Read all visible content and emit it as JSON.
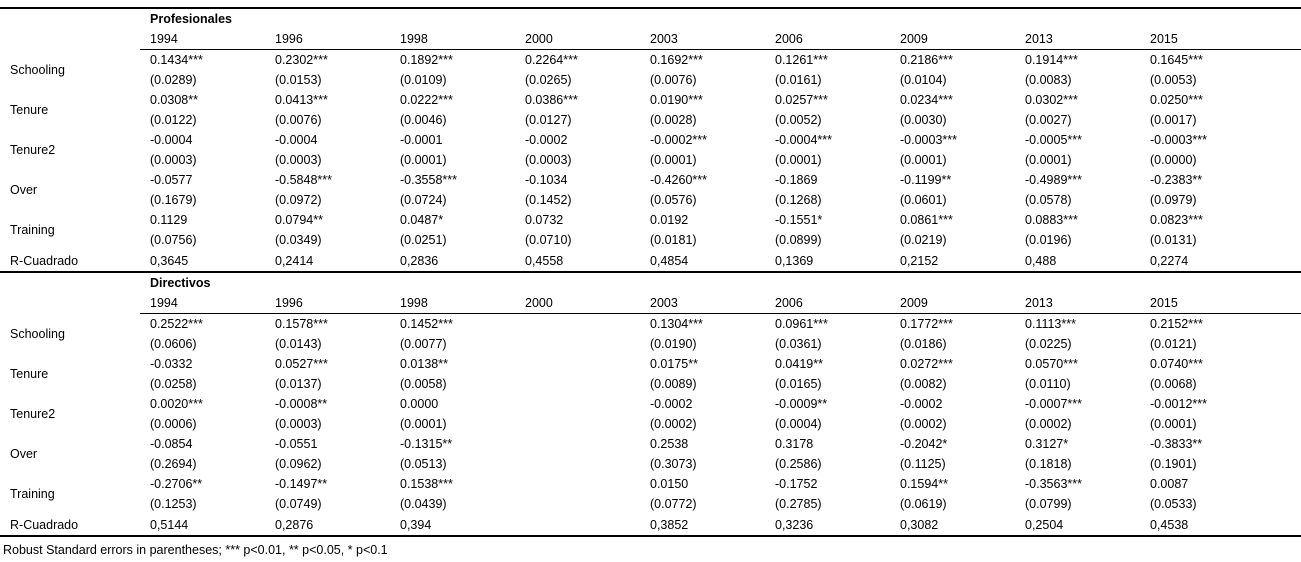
{
  "table": {
    "years": [
      "1994",
      "1996",
      "1998",
      "2000",
      "2003",
      "2006",
      "2009",
      "2013",
      "2015"
    ],
    "panels": [
      {
        "title": "Profesionales",
        "rows": [
          {
            "label": "Schooling",
            "coef": [
              "0.1434***",
              "0.2302***",
              "0.1892***",
              "0.2264***",
              "0.1692***",
              "0.1261***",
              "0.2186***",
              "0.1914***",
              "0.1645***"
            ],
            "se": [
              "(0.0289)",
              "(0.0153)",
              "(0.0109)",
              "(0.0265)",
              "(0.0076)",
              "(0.0161)",
              "(0.0104)",
              "(0.0083)",
              "(0.0053)"
            ]
          },
          {
            "label": "Tenure",
            "coef": [
              "0.0308**",
              "0.0413***",
              "0.0222***",
              "0.0386***",
              "0.0190***",
              "0.0257***",
              "0.0234***",
              "0.0302***",
              "0.0250***"
            ],
            "se": [
              "(0.0122)",
              "(0.0076)",
              "(0.0046)",
              "(0.0127)",
              "(0.0028)",
              "(0.0052)",
              "(0.0030)",
              "(0.0027)",
              "(0.0017)"
            ]
          },
          {
            "label": "Tenure2",
            "coef": [
              "-0.0004",
              "-0.0004",
              "-0.0001",
              "-0.0002",
              "-0.0002***",
              "-0.0004***",
              "-0.0003***",
              "-0.0005***",
              "-0.0003***"
            ],
            "se": [
              "(0.0003)",
              "(0.0003)",
              "(0.0001)",
              "(0.0003)",
              "(0.0001)",
              "(0.0001)",
              "(0.0001)",
              "(0.0001)",
              "(0.0000)"
            ]
          },
          {
            "label": "Over",
            "coef": [
              "-0.0577",
              "-0.5848***",
              "-0.3558***",
              "-0.1034",
              "-0.4260***",
              "-0.1869",
              "-0.1199**",
              "-0.4989***",
              "-0.2383**"
            ],
            "se": [
              "(0.1679)",
              "(0.0972)",
              "(0.0724)",
              "(0.1452)",
              "(0.0576)",
              "(0.1268)",
              "(0.0601)",
              "(0.0578)",
              "(0.0979)"
            ]
          },
          {
            "label": "Training",
            "coef": [
              "0.1129",
              "0.0794**",
              "0.0487*",
              "0.0732",
              "0.0192",
              "-0.1551*",
              "0.0861***",
              "0.0883***",
              "0.0823***"
            ],
            "se": [
              "(0.0756)",
              "(0.0349)",
              "(0.0251)",
              "(0.0710)",
              "(0.0181)",
              "(0.0899)",
              "(0.0219)",
              "(0.0196)",
              "(0.0131)"
            ]
          }
        ],
        "r2": {
          "label": "R-Cuadrado",
          "values": [
            "0,3645",
            "0,2414",
            "0,2836",
            "0,4558",
            "0,4854",
            "0,1369",
            "0,2152",
            "0,488",
            "0,2274"
          ]
        }
      },
      {
        "title": "Directivos",
        "rows": [
          {
            "label": "Schooling",
            "coef": [
              "0.2522***",
              "0.1578***",
              "0.1452***",
              "",
              "0.1304***",
              "0.0961***",
              "0.1772***",
              "0.1113***",
              "0.2152***"
            ],
            "se": [
              "(0.0606)",
              "(0.0143)",
              "(0.0077)",
              "",
              "(0.0190)",
              "(0.0361)",
              "(0.0186)",
              "(0.0225)",
              "(0.0121)"
            ]
          },
          {
            "label": "Tenure",
            "coef": [
              "-0.0332",
              "0.0527***",
              "0.0138**",
              "",
              "0.0175**",
              "0.0419**",
              "0.0272***",
              "0.0570***",
              "0.0740***"
            ],
            "se": [
              "(0.0258)",
              "(0.0137)",
              "(0.0058)",
              "",
              "(0.0089)",
              "(0.0165)",
              "(0.0082)",
              "(0.0110)",
              "(0.0068)"
            ]
          },
          {
            "label": "Tenure2",
            "coef": [
              "0.0020***",
              "-0.0008**",
              "0.0000",
              "",
              "-0.0002",
              "-0.0009**",
              "-0.0002",
              "-0.0007***",
              "-0.0012***"
            ],
            "se": [
              "(0.0006)",
              "(0.0003)",
              "(0.0001)",
              "",
              "(0.0002)",
              "(0.0004)",
              "(0.0002)",
              "(0.0002)",
              "(0.0001)"
            ]
          },
          {
            "label": "Over",
            "coef": [
              "-0.0854",
              "-0.0551",
              "-0.1315**",
              "",
              "0.2538",
              "0.3178",
              "-0.2042*",
              "0.3127*",
              "-0.3833**"
            ],
            "se": [
              "(0.2694)",
              "(0.0962)",
              "(0.0513)",
              "",
              "(0.3073)",
              "(0.2586)",
              "(0.1125)",
              "(0.1818)",
              "(0.1901)"
            ]
          },
          {
            "label": "Training",
            "coef": [
              "-0.2706**",
              "-0.1497**",
              "0.1538***",
              "",
              "0.0150",
              "-0.1752",
              "0.1594**",
              "-0.3563***",
              "0.0087"
            ],
            "se": [
              "(0.1253)",
              "(0.0749)",
              "(0.0439)",
              "",
              "(0.0772)",
              "(0.2785)",
              "(0.0619)",
              "(0.0799)",
              "(0.0533)"
            ]
          }
        ],
        "r2": {
          "label": "R-Cuadrado",
          "values": [
            "0,5144",
            "0,2876",
            "0,394",
            "",
            "0,3852",
            "0,3236",
            "0,3082",
            "0,2504",
            "0,4538"
          ]
        }
      }
    ],
    "footnote": "Robust Standard errors in parentheses; *** p<0.01, ** p<0.05, * p<0.1"
  }
}
